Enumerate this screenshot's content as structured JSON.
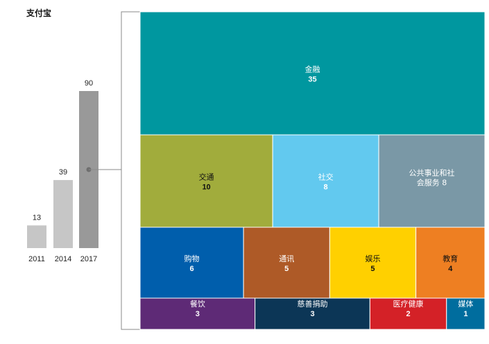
{
  "title": "支付宝",
  "chart_data": [
    {
      "type": "bar",
      "categories": [
        "2011",
        "2014",
        "2017"
      ],
      "values": [
        13,
        39,
        90
      ],
      "ylim": [
        0,
        90
      ],
      "colors": [
        "#c6c6c6",
        "#c6c6c6",
        "#999999"
      ]
    },
    {
      "type": "treemap",
      "note_year": "2017",
      "items": [
        {
          "label": "金融",
          "value": 35,
          "color": "#00979f",
          "text_color": "#ffffff"
        },
        {
          "label": "交通",
          "value": 10,
          "color": "#a1ac3c",
          "text_color": "#111111"
        },
        {
          "label": "社交",
          "value": 8,
          "color": "#62c9ef",
          "text_color": "#ffffff"
        },
        {
          "label": "公共事业和社会服务",
          "value": 8,
          "color": "#7a98a6",
          "text_color": "#ffffff"
        },
        {
          "label": "购物",
          "value": 6,
          "color": "#005eac",
          "text_color": "#ffffff"
        },
        {
          "label": "通讯",
          "value": 5,
          "color": "#ae5a27",
          "text_color": "#ffffff"
        },
        {
          "label": "娱乐",
          "value": 5,
          "color": "#ffd000",
          "text_color": "#111111"
        },
        {
          "label": "教育",
          "value": 4,
          "color": "#ee7f22",
          "text_color": "#111111"
        },
        {
          "label": "餐饮",
          "value": 3,
          "color": "#5e2a76",
          "text_color": "#ffffff"
        },
        {
          "label": "慈善捐助",
          "value": 3,
          "color": "#0c3656",
          "text_color": "#ffffff"
        },
        {
          "label": "医疗健康",
          "value": 2,
          "color": "#d42127",
          "text_color": "#ffffff"
        },
        {
          "label": "媒体",
          "value": 1,
          "color": "#006d9e",
          "text_color": "#ffffff"
        }
      ]
    }
  ]
}
